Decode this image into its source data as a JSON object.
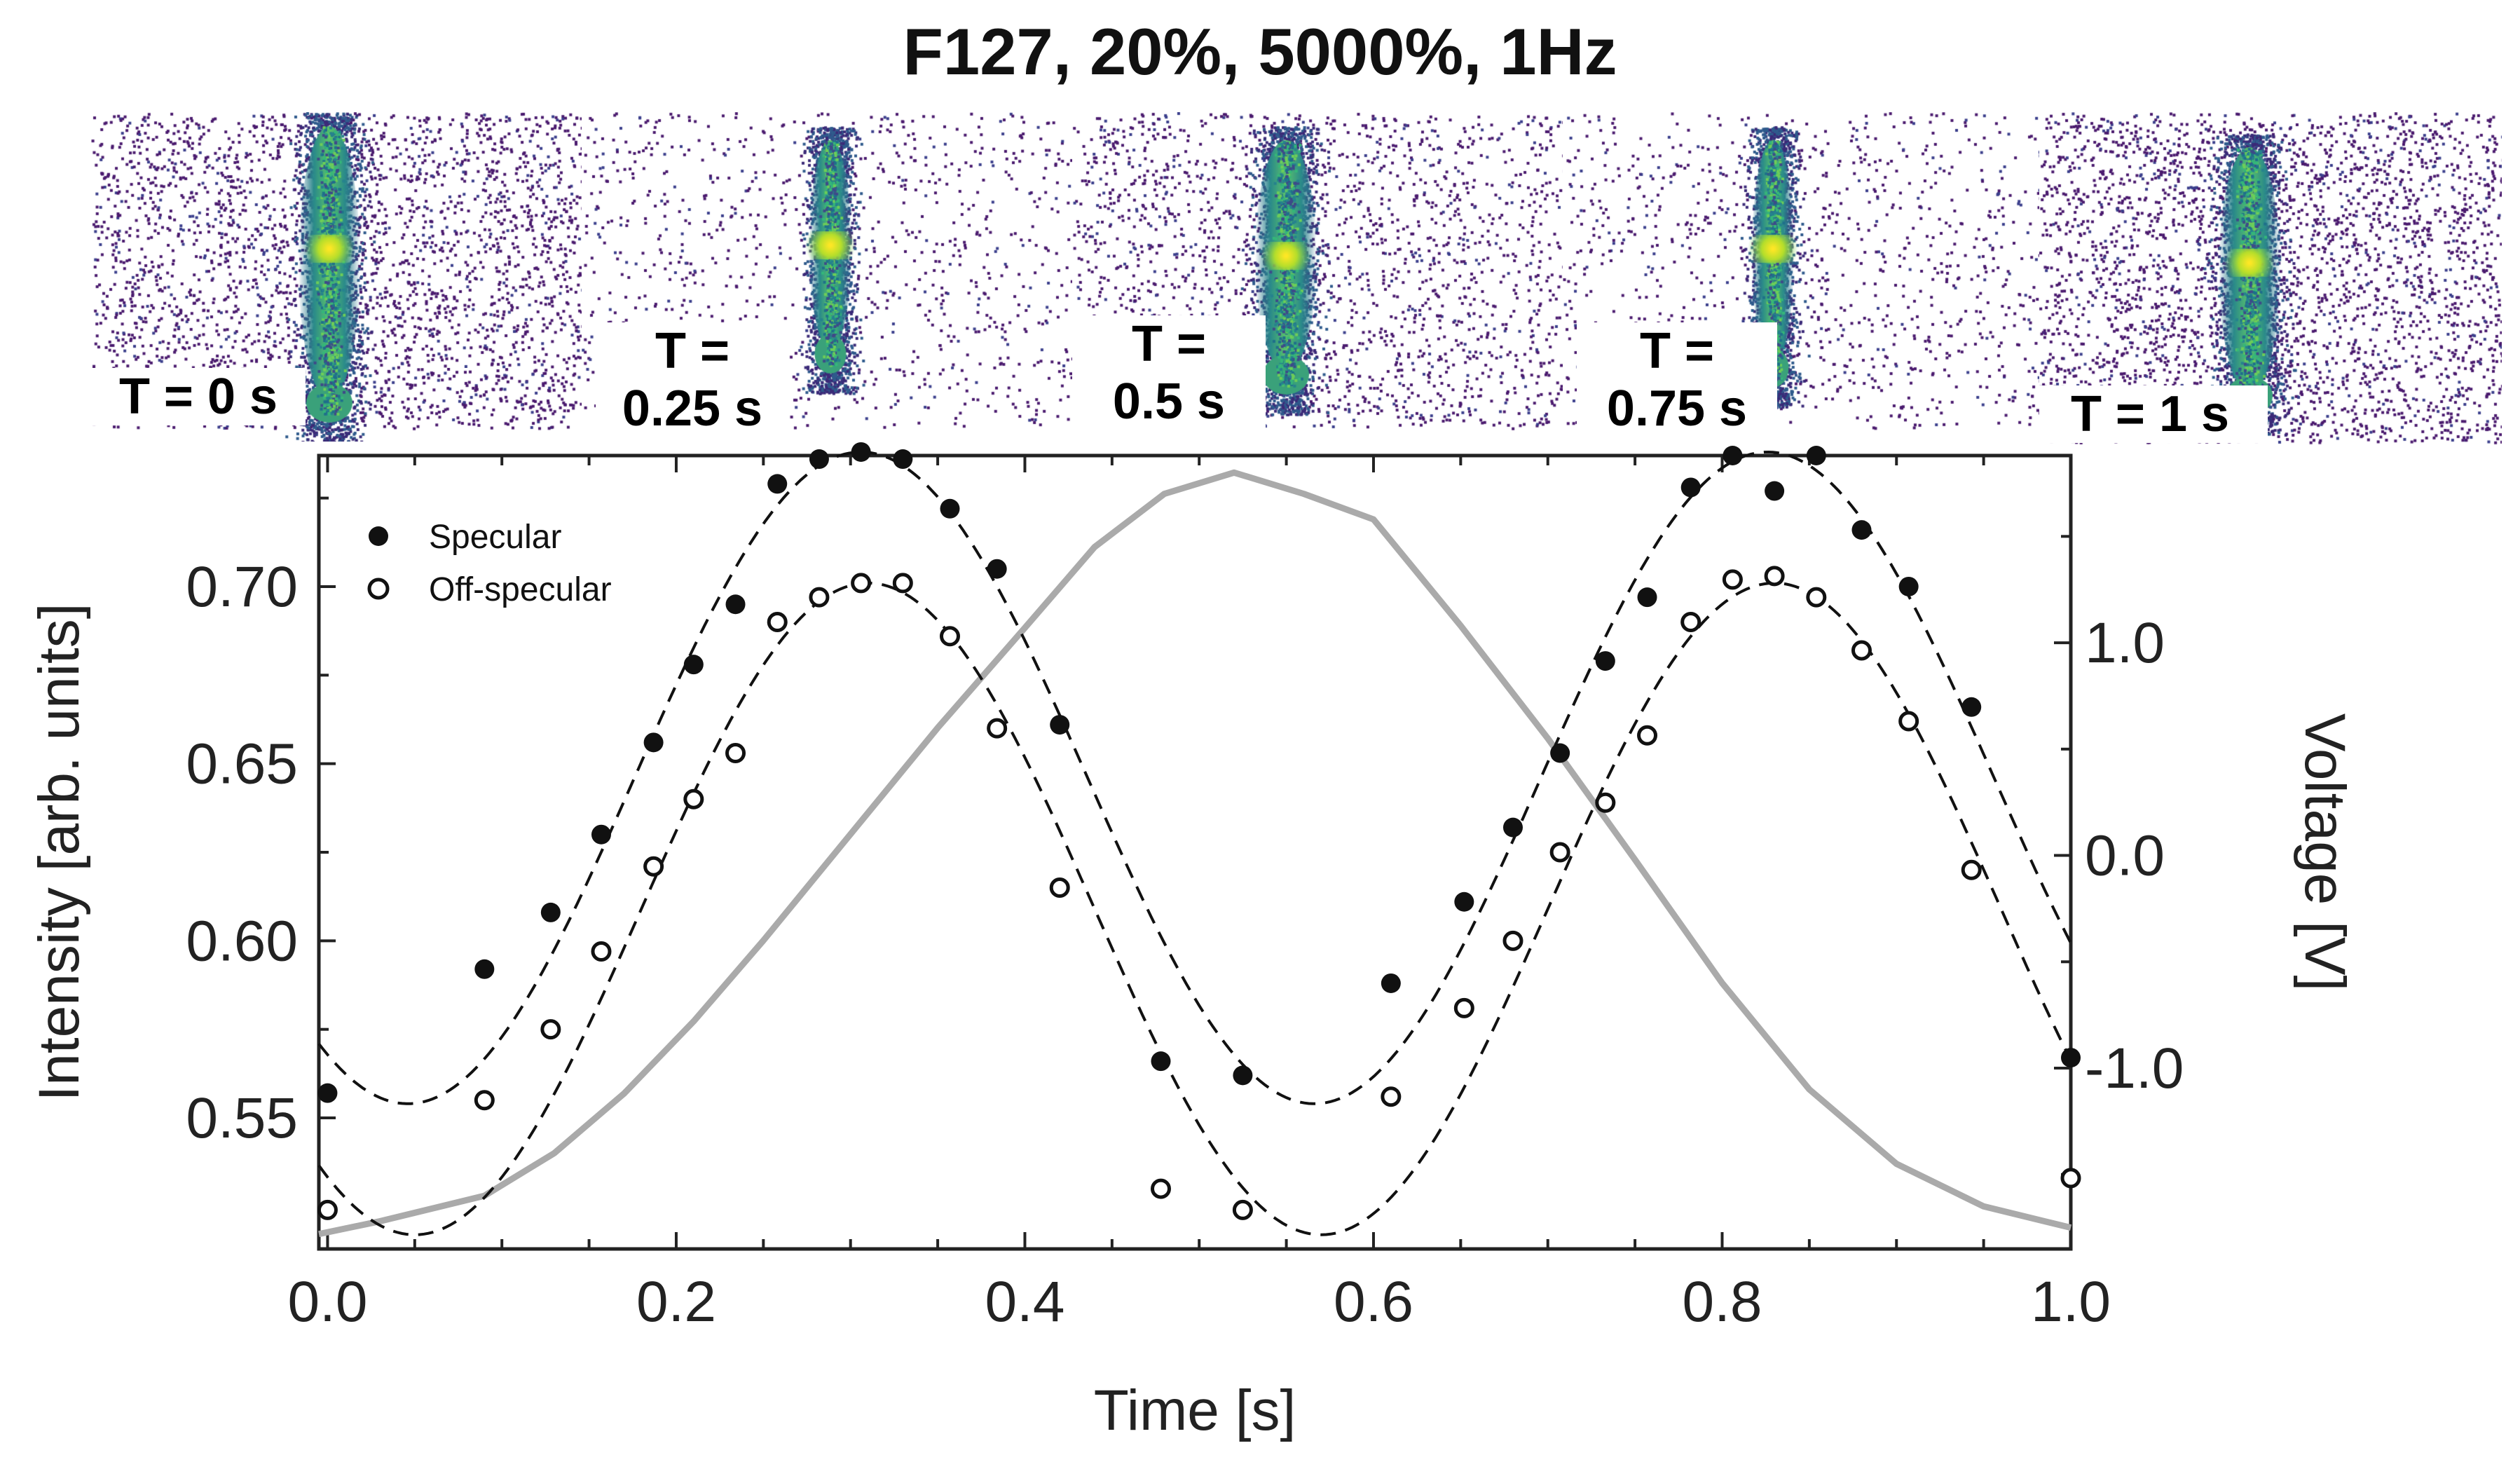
{
  "title": "F127, 20%, 5000%, 1Hz",
  "panels": [
    {
      "label_lines": [
        "T = 0 s"
      ]
    },
    {
      "label_lines": [
        "T =",
        "0.25 s"
      ]
    },
    {
      "label_lines": [
        "T =",
        "0.5 s"
      ]
    },
    {
      "label_lines": [
        "T =",
        "0.75 s"
      ]
    },
    {
      "label_lines": [
        "T = 1 s"
      ]
    }
  ],
  "chart_data": {
    "type": "scatter",
    "xlabel": "Time [s]",
    "ylabel": "Intensity [arb. units]",
    "y2label": "Voltage [V]",
    "xlim": [
      -0.005,
      1.0
    ],
    "ylim": [
      0.513,
      0.737
    ],
    "y2lim": [
      -1.85,
      1.88
    ],
    "xticks": [
      "0.0",
      "0.2",
      "0.4",
      "0.6",
      "0.8",
      "1.0"
    ],
    "xtick_values": [
      0.0,
      0.2,
      0.4,
      0.6,
      0.8,
      1.0
    ],
    "yticks": [
      "0.55",
      "0.60",
      "0.65",
      "0.70"
    ],
    "ytick_values": [
      0.55,
      0.6,
      0.65,
      0.7
    ],
    "y2ticks": [
      "-1.0",
      "0.0",
      "1.0"
    ],
    "y2tick_values": [
      -1.0,
      0.0,
      1.0
    ],
    "legend": {
      "position": "top-left",
      "entries": [
        "Specular",
        "Off-specular"
      ]
    },
    "series": [
      {
        "name": "Specular",
        "marker": "filled-circle",
        "x": [
          0.0,
          0.09,
          0.128,
          0.157,
          0.187,
          0.21,
          0.234,
          0.258,
          0.282,
          0.306,
          0.33,
          0.357,
          0.384,
          0.42,
          0.478,
          0.525,
          0.61,
          0.652,
          0.68,
          0.707,
          0.733,
          0.757,
          0.782,
          0.806,
          0.83,
          0.854,
          0.88,
          0.907,
          0.943,
          1.0
        ],
        "values": [
          0.557,
          0.592,
          0.608,
          0.63,
          0.656,
          0.678,
          0.695,
          0.729,
          0.736,
          0.738,
          0.736,
          0.722,
          0.705,
          0.661,
          0.566,
          0.562,
          0.588,
          0.611,
          0.632,
          0.653,
          0.679,
          0.697,
          0.728,
          0.737,
          0.727,
          0.737,
          0.716,
          0.7,
          0.666,
          0.567
        ]
      },
      {
        "name": "Off-specular",
        "marker": "open-circle",
        "x": [
          0.0,
          0.09,
          0.128,
          0.157,
          0.187,
          0.21,
          0.234,
          0.258,
          0.282,
          0.306,
          0.33,
          0.357,
          0.384,
          0.42,
          0.478,
          0.525,
          0.61,
          0.652,
          0.68,
          0.707,
          0.733,
          0.757,
          0.782,
          0.806,
          0.83,
          0.854,
          0.88,
          0.907,
          0.943,
          1.0
        ],
        "values": [
          0.524,
          0.555,
          0.575,
          0.597,
          0.621,
          0.64,
          0.653,
          0.69,
          0.697,
          0.701,
          0.701,
          0.686,
          0.66,
          0.615,
          0.53,
          0.524,
          0.556,
          0.581,
          0.6,
          0.625,
          0.639,
          0.658,
          0.69,
          0.702,
          0.703,
          0.697,
          0.682,
          0.662,
          0.62,
          0.533
        ]
      },
      {
        "name": "Specular fit",
        "style": "dashed",
        "axis": "left",
        "function": "sine",
        "offset": 0.646,
        "amplitude": 0.092,
        "period": 0.52,
        "peak_x": 0.306
      },
      {
        "name": "Off-specular fit",
        "style": "dashed",
        "axis": "left",
        "function": "sine",
        "offset": 0.609,
        "amplitude": 0.092,
        "period": 0.52,
        "peak_x": 0.31
      },
      {
        "name": "Voltage",
        "style": "solid-gray",
        "axis": "right",
        "x": [
          -0.005,
          0.03,
          0.09,
          0.13,
          0.17,
          0.21,
          0.25,
          0.3,
          0.35,
          0.4,
          0.44,
          0.48,
          0.52,
          0.56,
          0.6,
          0.65,
          0.7,
          0.75,
          0.8,
          0.85,
          0.9,
          0.95,
          1.0
        ],
        "values": [
          -1.78,
          -1.72,
          -1.6,
          -1.4,
          -1.12,
          -0.78,
          -0.4,
          0.1,
          0.6,
          1.07,
          1.45,
          1.7,
          1.8,
          1.7,
          1.58,
          1.08,
          0.55,
          -0.02,
          -0.6,
          -1.1,
          -1.45,
          -1.65,
          -1.75
        ]
      }
    ]
  },
  "colors": {
    "markers": "#111111",
    "voltage_line": "#aaaaaa",
    "frame": "#222222"
  }
}
